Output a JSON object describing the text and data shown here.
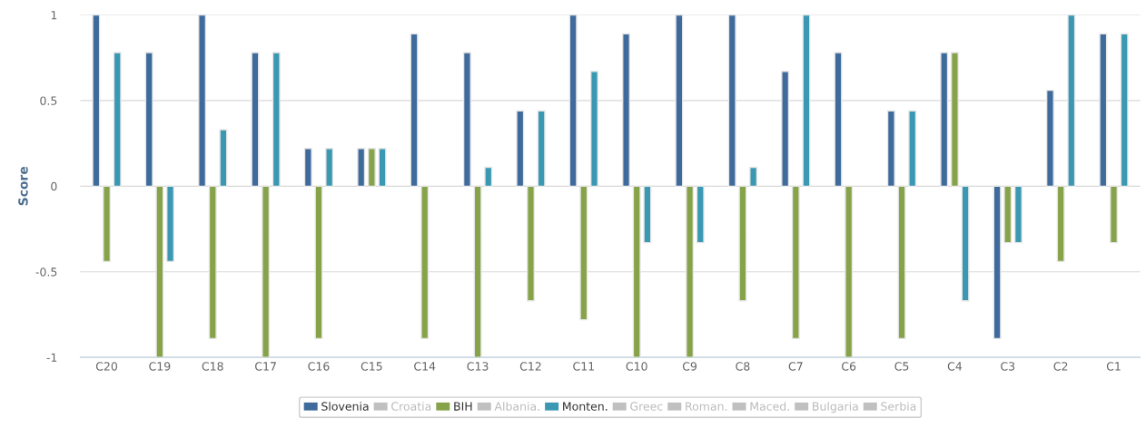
{
  "chart_data": {
    "type": "bar",
    "ylabel": "Score",
    "categories": [
      "C20",
      "C19",
      "C18",
      "C17",
      "C16",
      "C15",
      "C14",
      "C13",
      "C12",
      "C11",
      "C10",
      "C9",
      "C8",
      "C7",
      "C6",
      "C5",
      "C4",
      "C3",
      "C2",
      "C1"
    ],
    "series": [
      {
        "name": "Slovenia",
        "color": "#3f6a9c",
        "values": [
          1,
          0.78,
          1,
          0.78,
          0.22,
          0.22,
          0.89,
          0.78,
          0.44,
          1,
          0.89,
          1,
          1,
          0.67,
          0.78,
          0.44,
          0.78,
          -0.89,
          0.56,
          0.89
        ]
      },
      {
        "name": "Croatia",
        "color": "#c0c0c0",
        "values": [
          null,
          null,
          null,
          null,
          null,
          null,
          null,
          null,
          null,
          null,
          null,
          null,
          null,
          null,
          null,
          null,
          null,
          null,
          null,
          null
        ]
      },
      {
        "name": "BIH",
        "color": "#87a34a",
        "values": [
          -0.44,
          -1,
          -0.89,
          -1,
          -0.89,
          0.22,
          -0.89,
          -1,
          -0.67,
          -0.78,
          -1,
          -1,
          -0.67,
          -0.89,
          -1,
          -0.89,
          0.78,
          -0.33,
          -0.44,
          -0.33
        ]
      },
      {
        "name": "Albania.",
        "color": "#c0c0c0",
        "values": [
          null,
          null,
          null,
          null,
          null,
          null,
          null,
          null,
          null,
          null,
          null,
          null,
          null,
          null,
          null,
          null,
          null,
          null,
          null,
          null
        ]
      },
      {
        "name": "Monten.",
        "color": "#3a98b3",
        "values": [
          0.78,
          -0.44,
          0.33,
          0.78,
          0.22,
          0.22,
          null,
          0.11,
          0.44,
          0.67,
          -0.33,
          -0.33,
          0.11,
          1,
          null,
          0.44,
          -0.67,
          -0.33,
          1,
          0.89
        ]
      },
      {
        "name": "Greec",
        "color": "#c0c0c0",
        "values": [
          null,
          null,
          null,
          null,
          null,
          null,
          null,
          null,
          null,
          null,
          null,
          null,
          null,
          null,
          null,
          null,
          null,
          null,
          null,
          null
        ]
      },
      {
        "name": "Roman.",
        "color": "#c0c0c0",
        "values": [
          null,
          null,
          null,
          null,
          null,
          null,
          null,
          null,
          null,
          null,
          null,
          null,
          null,
          null,
          null,
          null,
          null,
          null,
          null,
          null
        ]
      },
      {
        "name": "Maced.",
        "color": "#c0c0c0",
        "values": [
          null,
          null,
          null,
          null,
          null,
          null,
          null,
          null,
          null,
          null,
          null,
          null,
          null,
          null,
          null,
          null,
          null,
          null,
          null,
          null
        ]
      },
      {
        "name": "Bulgaria",
        "color": "#c0c0c0",
        "values": [
          null,
          null,
          null,
          null,
          null,
          null,
          null,
          null,
          null,
          null,
          null,
          null,
          null,
          null,
          null,
          null,
          null,
          null,
          null,
          null
        ]
      },
      {
        "name": "Serbia",
        "color": "#c0c0c0",
        "values": [
          null,
          null,
          null,
          null,
          null,
          null,
          null,
          null,
          null,
          null,
          null,
          null,
          null,
          null,
          null,
          null,
          null,
          null,
          null,
          null
        ]
      }
    ],
    "ylim": [
      -1,
      1
    ],
    "yticks": [
      -1,
      -0.5,
      0,
      0.5,
      1
    ],
    "grid": "y",
    "legend": "bottom"
  }
}
